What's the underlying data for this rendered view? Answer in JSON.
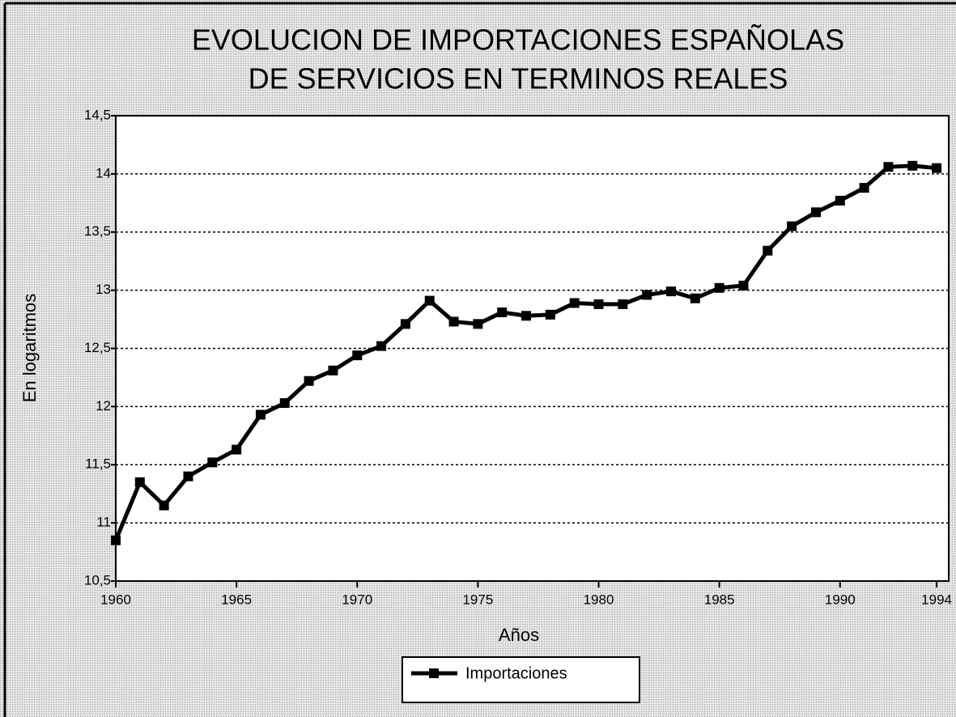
{
  "chart_data": {
    "type": "line",
    "title": [
      "EVOLUCION DE IMPORTACIONES ESPAÑOLAS",
      "DE SERVICIOS EN TERMINOS REALES"
    ],
    "x_label": "Años",
    "y_label": "En logaritmos",
    "x": [
      1960,
      1961,
      1962,
      1963,
      1964,
      1965,
      1966,
      1967,
      1968,
      1969,
      1970,
      1971,
      1972,
      1973,
      1974,
      1975,
      1976,
      1977,
      1978,
      1979,
      1980,
      1981,
      1982,
      1983,
      1984,
      1985,
      1986,
      1987,
      1988,
      1989,
      1990,
      1991,
      1992,
      1993,
      1994
    ],
    "series": [
      {
        "name": "Importaciones",
        "color": "#000000",
        "values": [
          10.85,
          11.35,
          11.15,
          11.4,
          11.52,
          11.63,
          11.93,
          12.03,
          12.22,
          12.31,
          12.44,
          12.52,
          12.71,
          12.91,
          12.73,
          12.71,
          12.81,
          12.78,
          12.79,
          12.89,
          12.88,
          12.88,
          12.96,
          12.99,
          12.93,
          13.02,
          13.04,
          13.34,
          13.55,
          13.67,
          13.77,
          13.88,
          14.06,
          14.07,
          14.05
        ]
      }
    ],
    "xlim": [
      1960,
      1994.5
    ],
    "xticks": [
      1960,
      1965,
      1970,
      1975,
      1980,
      1985,
      1990,
      1994
    ],
    "ylim": [
      10.5,
      14.5
    ],
    "yticks": [
      {
        "value": 10.5,
        "label": "10,5"
      },
      11,
      {
        "value": 11.5,
        "label": "11,5"
      },
      12,
      {
        "value": 12.5,
        "label": "12,5"
      },
      13,
      {
        "value": 13.5,
        "label": "13,5"
      },
      14,
      {
        "value": 14.5,
        "label": "14,5"
      }
    ],
    "grid": true,
    "legend": "bottom"
  }
}
